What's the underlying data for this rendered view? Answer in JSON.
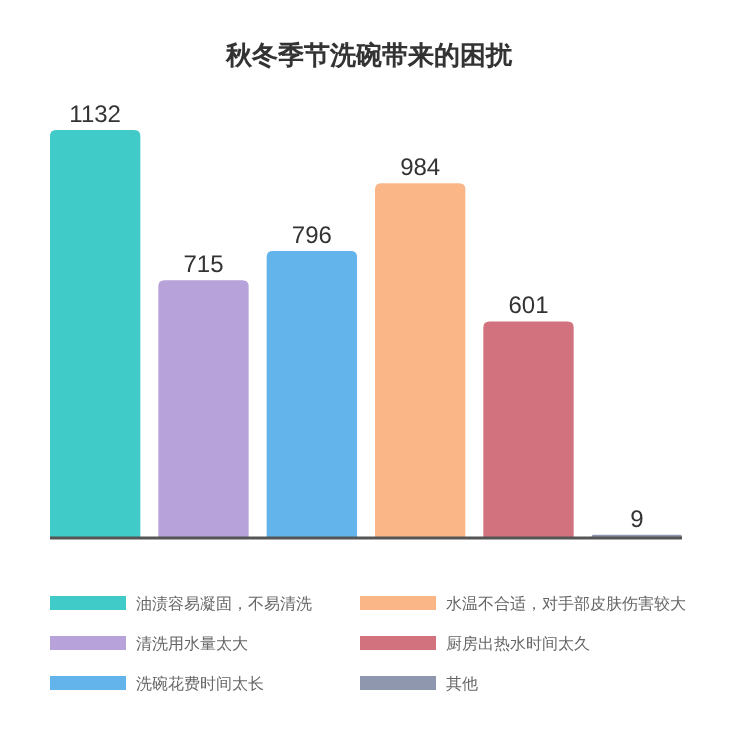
{
  "chart_data": {
    "type": "bar",
    "title": "秋冬季节洗碗带来的困扰",
    "categories": [
      null
    ],
    "series": [
      {
        "name": "油渍容易凝固，不易清洗",
        "color": "#40cbc9",
        "values": [
          1132
        ]
      },
      {
        "name": "清洗用水量太大",
        "color": "#b7a3da",
        "values": [
          715
        ]
      },
      {
        "name": "洗碗花费时间太长",
        "color": "#62b4ea",
        "values": [
          796
        ]
      },
      {
        "name": "水温不合适，对手部皮肤伤害较大",
        "color": "#fbb688",
        "values": [
          984
        ]
      },
      {
        "name": "厨房出热水时间太久",
        "color": "#d3727f",
        "values": [
          601
        ]
      },
      {
        "name": "其他",
        "color": "#8f97af",
        "values": [
          9
        ]
      }
    ],
    "data_labels": true,
    "legend": "bottom"
  }
}
